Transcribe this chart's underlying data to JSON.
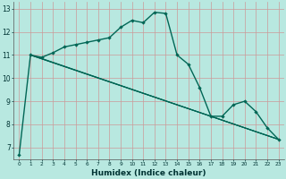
{
  "xlabel": "Humidex (Indice chaleur)",
  "bg_color": "#b8e8e0",
  "grid_color": "#cc9999",
  "line_color": "#006655",
  "xlim": [
    -0.5,
    23.5
  ],
  "ylim": [
    6.5,
    13.3
  ],
  "yticks": [
    7,
    8,
    9,
    10,
    11,
    12,
    13
  ],
  "xticks": [
    0,
    1,
    2,
    3,
    4,
    5,
    6,
    7,
    8,
    9,
    10,
    11,
    12,
    13,
    14,
    15,
    16,
    17,
    18,
    19,
    20,
    21,
    22,
    23
  ],
  "main_series": {
    "x": [
      0,
      1,
      2,
      3,
      4,
      5,
      6,
      7,
      8,
      9,
      10,
      11,
      12,
      13,
      14,
      15,
      16,
      17,
      18,
      19,
      20,
      21,
      22,
      23
    ],
    "y": [
      6.7,
      11.0,
      10.9,
      11.1,
      11.35,
      11.45,
      11.55,
      11.65,
      11.75,
      12.2,
      12.5,
      12.4,
      12.85,
      12.8,
      11.0,
      10.6,
      9.6,
      8.35,
      8.35,
      8.85,
      9.0,
      8.55,
      7.85,
      7.35
    ]
  },
  "extra_lines": [
    {
      "x": [
        1,
        2,
        23
      ],
      "y": [
        11.0,
        10.85,
        7.35
      ]
    },
    {
      "x": [
        1,
        17,
        23
      ],
      "y": [
        11.0,
        8.35,
        7.35
      ]
    },
    {
      "x": [
        1,
        23
      ],
      "y": [
        11.0,
        7.35
      ]
    }
  ]
}
